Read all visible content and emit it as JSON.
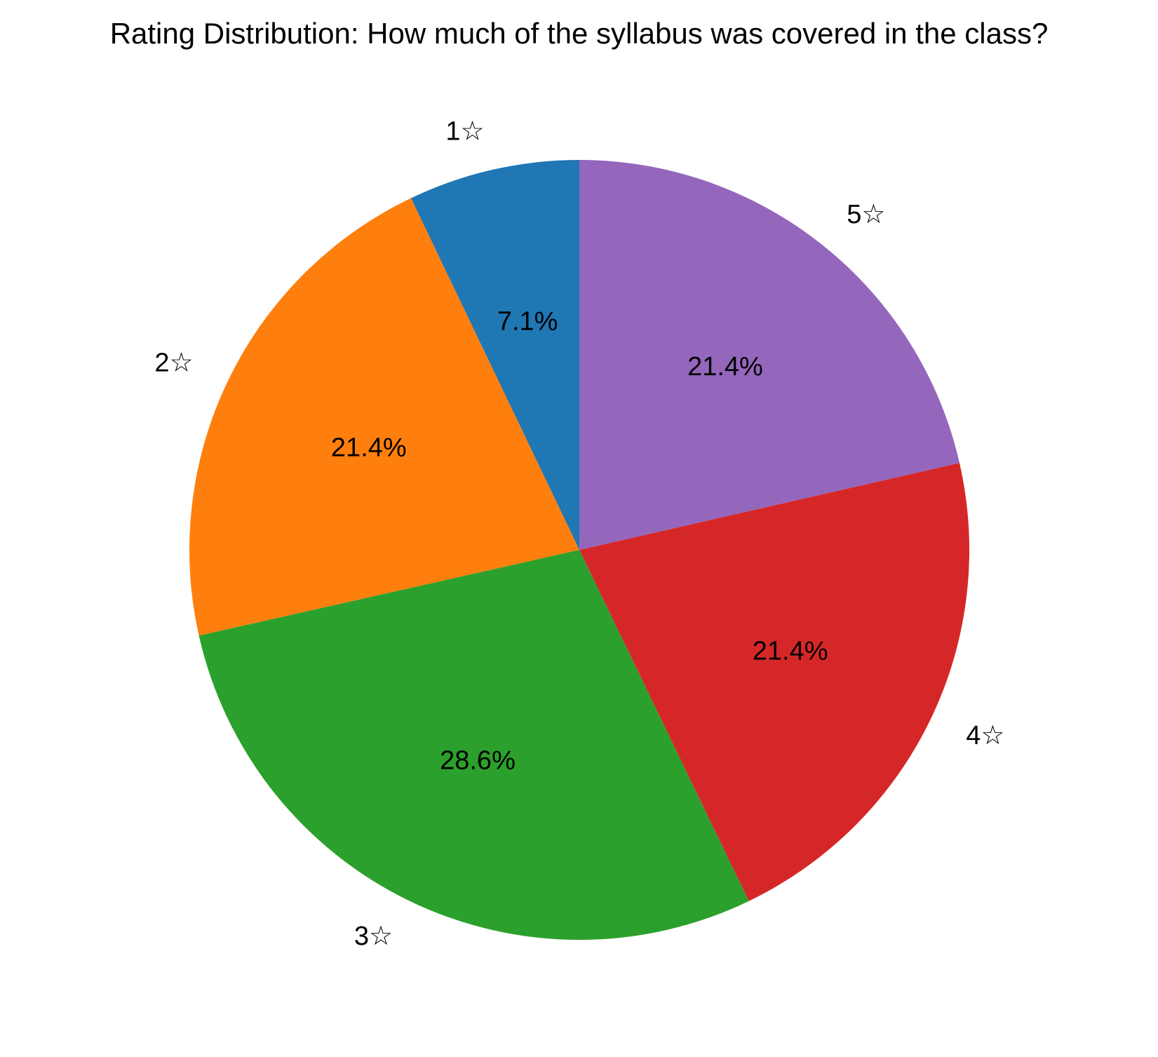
{
  "chart_data": {
    "type": "pie",
    "title": "Rating Distribution: How much of the syllabus was covered in the class?",
    "categories": [
      "1☆",
      "2☆",
      "3☆",
      "4☆",
      "5☆"
    ],
    "values": [
      7.1,
      21.4,
      28.6,
      21.4,
      21.4
    ],
    "value_labels": [
      "7.1%",
      "21.4%",
      "28.6%",
      "21.4%",
      "21.4%"
    ],
    "colors": [
      "#1f77b4",
      "#ff7f0e",
      "#2ca02c",
      "#d62728",
      "#9467bd"
    ],
    "start_angle": "top",
    "direction": "counterclockwise"
  }
}
